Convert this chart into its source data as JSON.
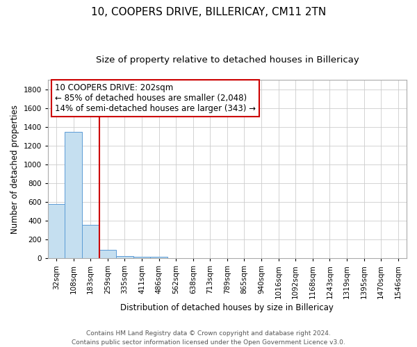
{
  "title_line1": "10, COOPERS DRIVE, BILLERICAY, CM11 2TN",
  "title_line2": "Size of property relative to detached houses in Billericay",
  "xlabel": "Distribution of detached houses by size in Billericay",
  "ylabel": "Number of detached properties",
  "categories": [
    "32sqm",
    "108sqm",
    "183sqm",
    "259sqm",
    "335sqm",
    "411sqm",
    "486sqm",
    "562sqm",
    "638sqm",
    "713sqm",
    "789sqm",
    "865sqm",
    "940sqm",
    "1016sqm",
    "1092sqm",
    "1168sqm",
    "1243sqm",
    "1319sqm",
    "1395sqm",
    "1470sqm",
    "1546sqm"
  ],
  "values": [
    575,
    1345,
    355,
    90,
    25,
    15,
    15,
    0,
    0,
    0,
    0,
    0,
    0,
    0,
    0,
    0,
    0,
    0,
    0,
    0,
    0
  ],
  "bar_color": "#c5dff0",
  "bar_edge_color": "#5b9bd5",
  "red_line_x": 2.5,
  "annotation_line1": "10 COOPERS DRIVE: 202sqm",
  "annotation_line2": "← 85% of detached houses are smaller (2,048)",
  "annotation_line3": "14% of semi-detached houses are larger (343) →",
  "annotation_box_color": "#ffffff",
  "annotation_box_edge": "#cc0000",
  "ylim": [
    0,
    1900
  ],
  "yticks": [
    0,
    200,
    400,
    600,
    800,
    1000,
    1200,
    1400,
    1600,
    1800
  ],
  "grid_color": "#cccccc",
  "background_color": "#ffffff",
  "footnote": "Contains HM Land Registry data © Crown copyright and database right 2024.\nContains public sector information licensed under the Open Government Licence v3.0.",
  "title_fontsize": 11,
  "subtitle_fontsize": 9.5,
  "label_fontsize": 8.5,
  "tick_fontsize": 7.5,
  "annotation_fontsize": 8.5,
  "footnote_fontsize": 6.5
}
